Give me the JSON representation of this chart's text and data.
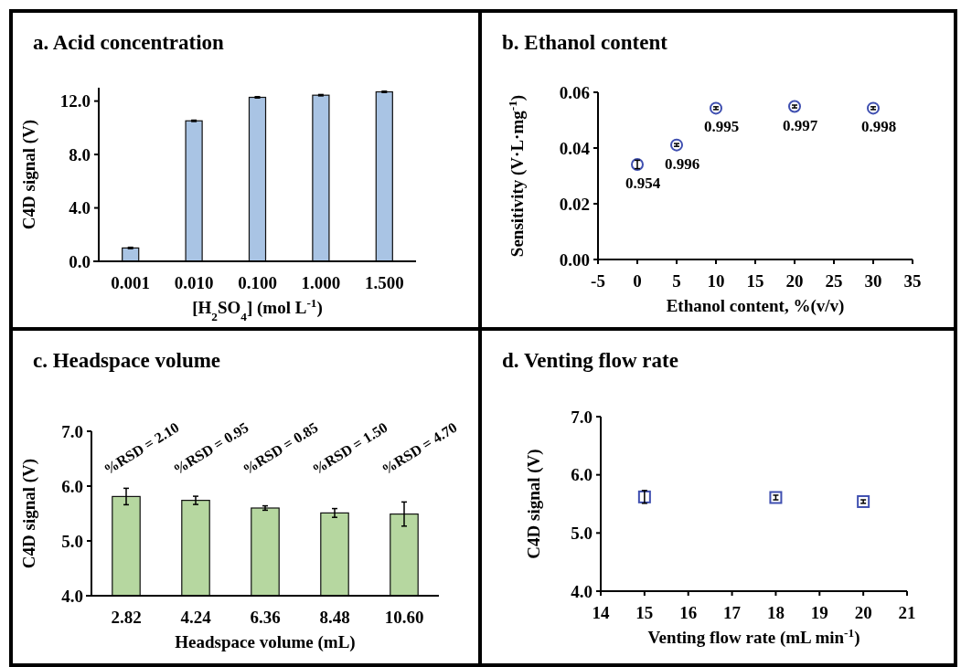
{
  "chart_data": [
    {
      "type": "bar",
      "title": "a. Acid concentration",
      "xlabel": "[H$_{2}$SO$_{4}$] (mol L$^{-1}$)",
      "ylabel": "C4D signal (V)",
      "categories": [
        "0.001",
        "0.010",
        "0.100",
        "1.000",
        "1.500"
      ],
      "values": [
        1.0,
        10.52,
        12.28,
        12.44,
        12.69
      ],
      "errors": [
        0.05,
        0.05,
        0.05,
        0.05,
        0.05
      ],
      "color": "#a9c4e4",
      "ylim": [
        0,
        13
      ],
      "yticks": [
        {
          "value": 0,
          "label": "0.0"
        },
        {
          "value": 4,
          "label": "4.0"
        },
        {
          "value": 8,
          "label": "8.0"
        },
        {
          "value": 12,
          "label": "12.0"
        }
      ]
    },
    {
      "type": "scatter",
      "title": "b. Ethanol content",
      "xlabel": "Ethanol content, %(v/v)",
      "ylabel": "Sensitivity (V·L·mg$^{-1}$)",
      "x": [
        0,
        5,
        10,
        20,
        30
      ],
      "values": [
        0.0341,
        0.0411,
        0.0543,
        0.0549,
        0.0543
      ],
      "errors": [
        0.0015,
        0.0005,
        0.0005,
        0.0005,
        0.0005
      ],
      "color": "#3f4fb0",
      "marker": "circle",
      "xlim": [
        -5,
        35
      ],
      "xticks": [
        -5,
        0,
        5,
        10,
        15,
        20,
        25,
        30,
        35
      ],
      "ylim": [
        0,
        0.06
      ],
      "yticks": [
        {
          "value": 0,
          "label": "0.00"
        },
        {
          "value": 0.02,
          "label": "0.02"
        },
        {
          "value": 0.04,
          "label": "0.04"
        },
        {
          "value": 0.06,
          "label": "0.06"
        }
      ],
      "annotations": [
        {
          "text": "0.954",
          "x": 0,
          "y": 0.0341
        },
        {
          "text": "0.996",
          "x": 5,
          "y": 0.0411
        },
        {
          "text": "0.995",
          "x": 10,
          "y": 0.0543
        },
        {
          "text": "0.997",
          "x": 20,
          "y": 0.0549
        },
        {
          "text": "0.998",
          "x": 30,
          "y": 0.0543
        }
      ]
    },
    {
      "type": "bar",
      "title": "c. Headspace volume",
      "xlabel": "Headspace volume (mL)",
      "ylabel": "C4D signal (V)",
      "categories": [
        "2.82",
        "4.24",
        "6.36",
        "8.48",
        "10.60"
      ],
      "values": [
        5.81,
        5.74,
        5.6,
        5.51,
        5.49
      ],
      "errors": [
        0.15,
        0.075,
        0.04,
        0.08,
        0.22
      ],
      "color": "#b6d7a0",
      "ylim": [
        4,
        7
      ],
      "yticks": [
        {
          "value": 4,
          "label": "4.0"
        },
        {
          "value": 5,
          "label": "5.0"
        },
        {
          "value": 6,
          "label": "6.0"
        },
        {
          "value": 7,
          "label": "7.0"
        }
      ],
      "annotations": [
        "%RSD = 2.10",
        "%RSD = 0.95",
        "%RSD = 0.85",
        "%RSD = 1.50",
        "%RSD = 4.70"
      ]
    },
    {
      "type": "scatter",
      "title": "d. Venting flow rate",
      "xlabel": "Venting flow rate (mL min$^{-1}$)",
      "ylabel": "C4D signal (V)",
      "x": [
        15,
        18,
        20
      ],
      "values": [
        5.62,
        5.61,
        5.54
      ],
      "errors": [
        0.11,
        0.04,
        0.03
      ],
      "color": "#3f4fb0",
      "marker": "square",
      "xlim": [
        14,
        21
      ],
      "xticks": [
        14,
        15,
        16,
        17,
        18,
        19,
        20,
        21
      ],
      "ylim": [
        4,
        7
      ],
      "yticks": [
        {
          "value": 4,
          "label": "4.0"
        },
        {
          "value": 5,
          "label": "5.0"
        },
        {
          "value": 6,
          "label": "6.0"
        },
        {
          "value": 7,
          "label": "7.0"
        }
      ]
    }
  ]
}
